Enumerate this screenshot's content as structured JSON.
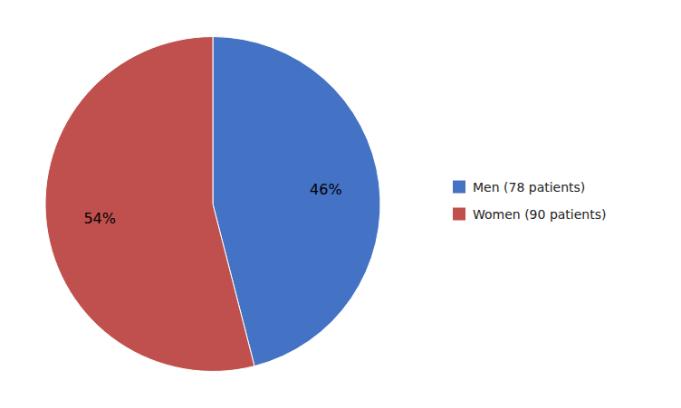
{
  "chart_data": {
    "type": "pie",
    "categories": [
      "Men (78 patients)",
      "Women (90 patients)"
    ],
    "values": [
      46,
      54
    ],
    "value_labels": [
      "46%",
      "54%"
    ],
    "colors": [
      "#4472c4",
      "#c0504d"
    ],
    "data_labels": true,
    "legend": "right"
  }
}
